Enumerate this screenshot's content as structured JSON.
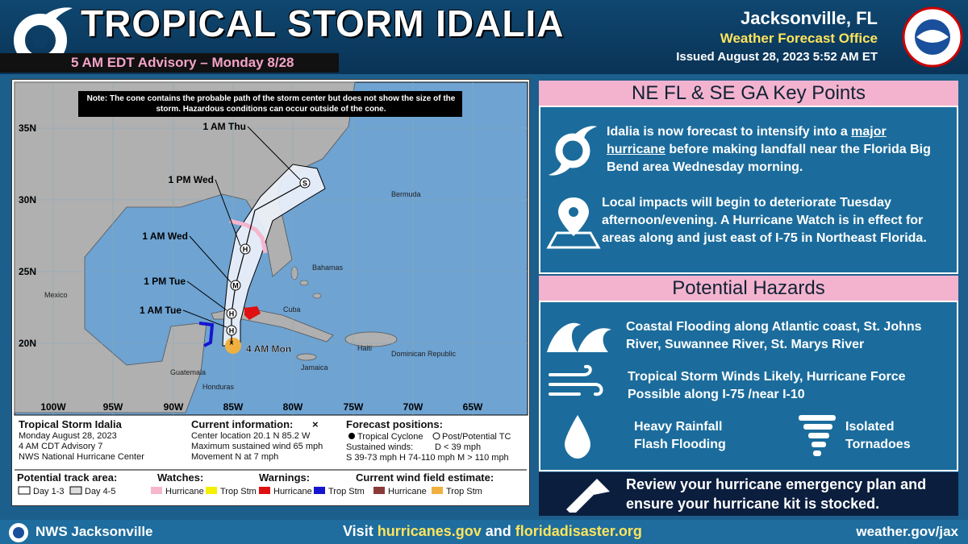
{
  "header": {
    "title": "TROPICAL STORM IDALIA",
    "advisory": "5 AM EDT Advisory – Monday 8/28",
    "office_city": "Jacksonville, FL",
    "office_name": "Weather Forecast Office",
    "issued": "Issued August 28, 2023 5:52 AM ET"
  },
  "map": {
    "note": "Note: The cone contains the probable path of the storm center but does not show the size of the storm. Hazardous conditions can occur outside of the cone.",
    "latitudes": [
      "35N",
      "30N",
      "25N",
      "20N"
    ],
    "longitudes": [
      "100W",
      "95W",
      "90W",
      "85W",
      "80W",
      "75W",
      "70W",
      "65W"
    ],
    "places": [
      "Bermuda",
      "Bahamas",
      "Cuba",
      "Mexico",
      "Jamaica",
      "Haiti",
      "Dominican Republic",
      "Guatemala",
      "Honduras"
    ],
    "forecast_points": [
      {
        "time": "4 AM Mon",
        "code": "×"
      },
      {
        "time": "1 AM Tue",
        "code": "H"
      },
      {
        "time": "1 PM Tue",
        "code": "H"
      },
      {
        "time": "1 AM Wed",
        "code": "M"
      },
      {
        "time": "1 PM Wed",
        "code": "H"
      },
      {
        "time": "1 AM Thu",
        "code": "S"
      }
    ]
  },
  "map_legend": {
    "storm": [
      "Tropical Storm Idalia",
      "Monday August 28, 2023",
      "4 AM CDT Advisory 7",
      "NWS National Hurricane Center"
    ],
    "current_title": "Current information:",
    "current_symbol": "×",
    "current": [
      "Center location 20.1 N 85.2 W",
      "Maximum sustained wind 65 mph",
      "Movement N at 7 mph"
    ],
    "forecast_title": "Forecast positions:",
    "forecast": [
      "Tropical Cyclone",
      "Post/Potential TC",
      "Sustained winds:",
      "D < 39 mph",
      "S 39-73 mph  H 74-110 mph  M > 110 mph"
    ],
    "track_title": "Potential track area:",
    "track": [
      "Day 1-3",
      "Day 4-5"
    ],
    "watches_title": "Watches:",
    "watches": [
      "Hurricane",
      "Trop Stm"
    ],
    "warnings_title": "Warnings:",
    "warnings": [
      "Hurricane",
      "Trop Stm"
    ],
    "wind_title": "Current wind field estimate:",
    "wind": [
      "Hurricane",
      "Trop Stm"
    ]
  },
  "key_points": {
    "title": "NE FL & SE GA Key Points",
    "items": [
      [
        "Idalia is now forecast to intensify into a ",
        "major hurricane",
        " before making landfall near the Florida Big Bend area Wednesday morning."
      ],
      [
        "Local impacts will begin to deteriorate Tuesday afternoon/evening.  A Hurricane Watch is in effect for areas along and just east of I-75 in Northeast Florida."
      ]
    ]
  },
  "hazards": {
    "title": "Potential Hazards",
    "items": [
      "Coastal Flooding along Atlantic coast, St. Johns River, Suwannee River, St. Marys River",
      "Tropical Storm Winds Likely, Hurricane Force Possible along I-75 /near I-10",
      "Heavy Rainfall Flash Flooding",
      "Isolated Tornadoes"
    ]
  },
  "reminder": "Review your hurricane emergency plan and ensure your hurricane kit is stocked.",
  "footer": {
    "left": "NWS Jacksonville",
    "visit": [
      "Visit ",
      "hurricanes.gov",
      " and ",
      "floridadisaster.org"
    ],
    "right": "weather.gov/jax"
  }
}
